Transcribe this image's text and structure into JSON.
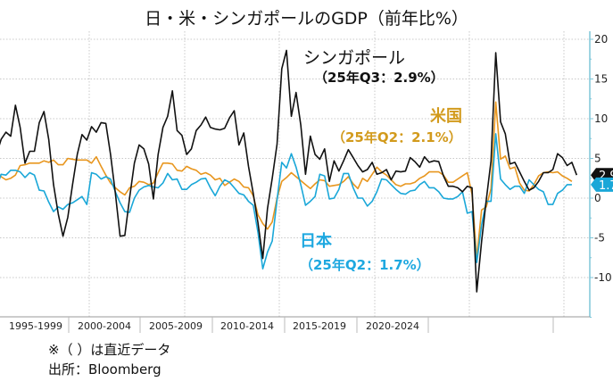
{
  "chart_data": {
    "type": "line",
    "title": "日・米・シンガポールのGDP（前年比%）",
    "xlabel": "",
    "ylabel": "",
    "ylim": [
      -15,
      21
    ],
    "y_ticks": [
      20,
      15,
      10,
      5,
      0,
      -5,
      -10
    ],
    "y_axis_side": "right",
    "x_tick_labels": [
      "1995-1999",
      "2000-2004",
      "2005-2009",
      "2010-2014",
      "2015-2019",
      "2020-2024"
    ],
    "grid": true,
    "x": [
      "1995Q1",
      "1995Q2",
      "1995Q3",
      "1995Q4",
      "1996Q1",
      "1996Q2",
      "1996Q3",
      "1996Q4",
      "1997Q1",
      "1997Q2",
      "1997Q3",
      "1997Q4",
      "1998Q1",
      "1998Q2",
      "1998Q3",
      "1998Q4",
      "1999Q1",
      "1999Q2",
      "1999Q3",
      "1999Q4",
      "2000Q1",
      "2000Q2",
      "2000Q3",
      "2000Q4",
      "2001Q1",
      "2001Q2",
      "2001Q3",
      "2001Q4",
      "2002Q1",
      "2002Q2",
      "2002Q3",
      "2002Q4",
      "2003Q1",
      "2003Q2",
      "2003Q3",
      "2003Q4",
      "2004Q1",
      "2004Q2",
      "2004Q3",
      "2004Q4",
      "2005Q1",
      "2005Q2",
      "2005Q3",
      "2005Q4",
      "2006Q1",
      "2006Q2",
      "2006Q3",
      "2006Q4",
      "2007Q1",
      "2007Q2",
      "2007Q3",
      "2007Q4",
      "2008Q1",
      "2008Q2",
      "2008Q3",
      "2008Q4",
      "2009Q1",
      "2009Q2",
      "2009Q3",
      "2009Q4",
      "2010Q1",
      "2010Q2",
      "2010Q3",
      "2010Q4",
      "2011Q1",
      "2011Q2",
      "2011Q3",
      "2011Q4",
      "2012Q1",
      "2012Q2",
      "2012Q3",
      "2012Q4",
      "2013Q1",
      "2013Q2",
      "2013Q3",
      "2013Q4",
      "2014Q1",
      "2014Q2",
      "2014Q3",
      "2014Q4",
      "2015Q1",
      "2015Q2",
      "2015Q3",
      "2015Q4",
      "2016Q1",
      "2016Q2",
      "2016Q3",
      "2016Q4",
      "2017Q1",
      "2017Q2",
      "2017Q3",
      "2017Q4",
      "2018Q1",
      "2018Q2",
      "2018Q3",
      "2018Q4",
      "2019Q1",
      "2019Q2",
      "2019Q3",
      "2019Q4",
      "2020Q1",
      "2020Q2",
      "2020Q3",
      "2020Q4",
      "2021Q1",
      "2021Q2",
      "2021Q3",
      "2021Q4",
      "2022Q1",
      "2022Q2",
      "2022Q3",
      "2022Q4",
      "2023Q1",
      "2023Q2",
      "2023Q3",
      "2023Q4",
      "2024Q1",
      "2024Q2",
      "2024Q3",
      "2024Q4",
      "2025Q1",
      "2025Q2",
      "2025Q3"
    ],
    "series": [
      {
        "name": "シンガポール",
        "color": "#111111",
        "latest_label": "2.9",
        "values": [
          5.5,
          7.4,
          8.3,
          7.8,
          11.7,
          8.9,
          4.4,
          5.9,
          5.9,
          9.5,
          10.9,
          7.4,
          1.7,
          -2,
          -4.8,
          -2.4,
          1.7,
          5.5,
          8.0,
          7.3,
          9.0,
          8.3,
          9.5,
          9.4,
          5.5,
          0.6,
          -4.8,
          -4.7,
          0,
          4.4,
          6.7,
          6.2,
          4.3,
          -0.1,
          5.5,
          8.9,
          10.3,
          13.5,
          8.5,
          7.9,
          5.5,
          6.2,
          8.5,
          9.2,
          10.2,
          8.9,
          8.7,
          8.6,
          8.8,
          10.1,
          11.0,
          6.7,
          8.2,
          4.0,
          0.6,
          -3.1,
          -7.6,
          -1.3,
          2.5,
          6.8,
          16.3,
          18.6,
          10.3,
          13.3,
          9.2,
          3.0,
          7.8,
          5.5,
          4.9,
          6.2,
          2.1,
          4.7,
          3.4,
          4.7,
          6.1,
          5.1,
          4.1,
          3.3,
          3.6,
          4.5,
          3.0,
          3.2,
          3.6,
          2.3,
          3.4,
          3.3,
          3.4,
          5.1,
          4.6,
          3.9,
          5.2,
          4.5,
          4.7,
          4.6,
          2.8,
          1.5,
          1.5,
          1.3,
          0.8,
          1.5,
          1.3,
          -11.8,
          -5.5,
          -0.2,
          4.7,
          18.3,
          9.6,
          8.1,
          4.3,
          4.5,
          3.3,
          2.1,
          1.0,
          1.3,
          2.1,
          3.2,
          3.2,
          3.6,
          5.6,
          5.1,
          4.1,
          4.5,
          2.9
        ]
      },
      {
        "name": "米国",
        "color": "#e8961e",
        "latest_label": "",
        "values": [
          3.4,
          2.7,
          2.3,
          2.5,
          2.9,
          4.1,
          4.2,
          4.4,
          4.4,
          4.4,
          4.7,
          4.5,
          4.8,
          4.2,
          4.2,
          5.0,
          4.9,
          4.8,
          4.8,
          4.8,
          4.4,
          5.2,
          4.0,
          2.9,
          1.9,
          1.3,
          0.8,
          0.4,
          1.3,
          1.5,
          2.1,
          2.0,
          1.7,
          1.9,
          3.2,
          4.4,
          4.4,
          4.3,
          3.5,
          3.4,
          4.0,
          3.7,
          3.5,
          3.0,
          3.2,
          2.9,
          2.3,
          2.5,
          1.6,
          2.0,
          2.4,
          2.1,
          1.4,
          1.3,
          0.3,
          -2.1,
          -3.2,
          -3.9,
          -3.0,
          0,
          2.1,
          2.6,
          3.2,
          2.7,
          2.2,
          1.7,
          1.2,
          1.8,
          2.3,
          2.2,
          1.5,
          1.6,
          1.7,
          2.1,
          2.7,
          1.8,
          1.2,
          2.5,
          2.1,
          3.0,
          3.9,
          3.3,
          2.9,
          2.3,
          1.7,
          1.5,
          1.8,
          1.8,
          2.0,
          2.5,
          2.8,
          3.3,
          3.3,
          3.3,
          2.9,
          2.0,
          2.0,
          2.4,
          2.8,
          3.2,
          0.5,
          -7.5,
          -1.5,
          -1.1,
          1.2,
          12.1,
          4.9,
          5.3,
          3.7,
          3.9,
          1.9,
          1.0,
          0.9,
          1.7,
          2.8,
          3.2,
          3.3,
          3.2,
          3.3,
          2.8,
          2.5,
          2.1,
          null
        ]
      },
      {
        "name": "日本",
        "color": "#1aa7d8",
        "latest_label": "1.7",
        "values": [
          1.3,
          3.0,
          2.9,
          3.5,
          3.5,
          3.3,
          2.6,
          3.2,
          2.9,
          1.0,
          0.9,
          -0.5,
          -1.7,
          -1.1,
          -1.4,
          -0.8,
          -0.6,
          -0.2,
          0.2,
          -0.8,
          3.2,
          3.0,
          2.4,
          2.7,
          2.4,
          0.8,
          -0.6,
          -1.7,
          -1.8,
          0,
          1.0,
          1.4,
          1.6,
          1.4,
          1.3,
          1.9,
          3.1,
          2.3,
          2.4,
          1.1,
          1.1,
          1.7,
          2.0,
          2.4,
          2.5,
          1.3,
          0.3,
          1.5,
          2.3,
          2.0,
          1.3,
          0.6,
          0.4,
          -0.4,
          -0.9,
          -4.3,
          -8.9,
          -6.8,
          -5.4,
          -0.2,
          4.5,
          3.8,
          5.6,
          3.9,
          1.7,
          -0.9,
          -0.4,
          0.2,
          3.0,
          2.8,
          -0.1,
          0,
          1.1,
          3.1,
          3.1,
          1.3,
          0,
          0,
          -1.0,
          -0.4,
          0.8,
          2.4,
          2.3,
          1.7,
          1.1,
          0.6,
          0.5,
          0.9,
          1.0,
          1.7,
          2.1,
          1.3,
          1.3,
          0.8,
          0,
          -0.1,
          -0.1,
          0.2,
          0.8,
          -1.9,
          -1.7,
          -8.1,
          -3.4,
          -0.4,
          -0.4,
          8.1,
          2.4,
          1.7,
          1.1,
          1.5,
          1.5,
          0.6,
          2.3,
          1.7,
          1.1,
          0.8,
          -0.8,
          -0.8,
          0.6,
          1.0,
          1.7,
          1.7,
          null
        ]
      }
    ],
    "annotations": {
      "singapore_name": "シンガポール",
      "singapore_latest": "（25年Q3：2.9%）",
      "us_name": "米国",
      "us_latest": "（25年Q2：2.1%）",
      "japan_name": "日本",
      "japan_latest": "（25年Q2：1.7%）"
    }
  },
  "footer": {
    "note": "※（ ）は直近データ",
    "source": "出所：Bloomberg"
  }
}
